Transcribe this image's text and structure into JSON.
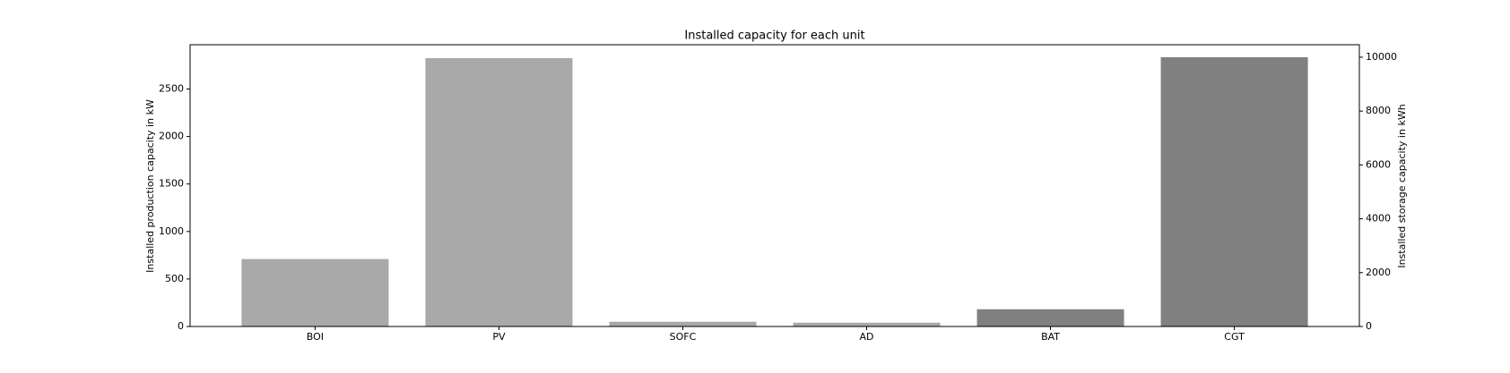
{
  "chart_data": {
    "type": "bar",
    "title": "Installed capacity for each unit",
    "y_label": "Installed production capacity in kW",
    "y2_label": "Installed storage capacity in kWh",
    "categories": [
      "BOI",
      "PV",
      "SOFC",
      "AD",
      "BAT",
      "CGT"
    ],
    "series": [
      {
        "color": "#a9a9a9",
        "values": [
          710,
          2825,
          50,
          40,
          null,
          null
        ],
        "axis": "y"
      },
      {
        "color": "#808080",
        "values": [
          null,
          null,
          null,
          null,
          640,
          10000
        ],
        "axis": "y2"
      }
    ],
    "ylim": [
      0,
      2966
    ],
    "yticks": [
      0,
      500,
      1000,
      1500,
      2000,
      2500
    ],
    "y2lim": [
      0,
      10464
    ],
    "y2ticks": [
      0,
      2000,
      4000,
      6000,
      8000,
      10000
    ],
    "grid": false
  }
}
